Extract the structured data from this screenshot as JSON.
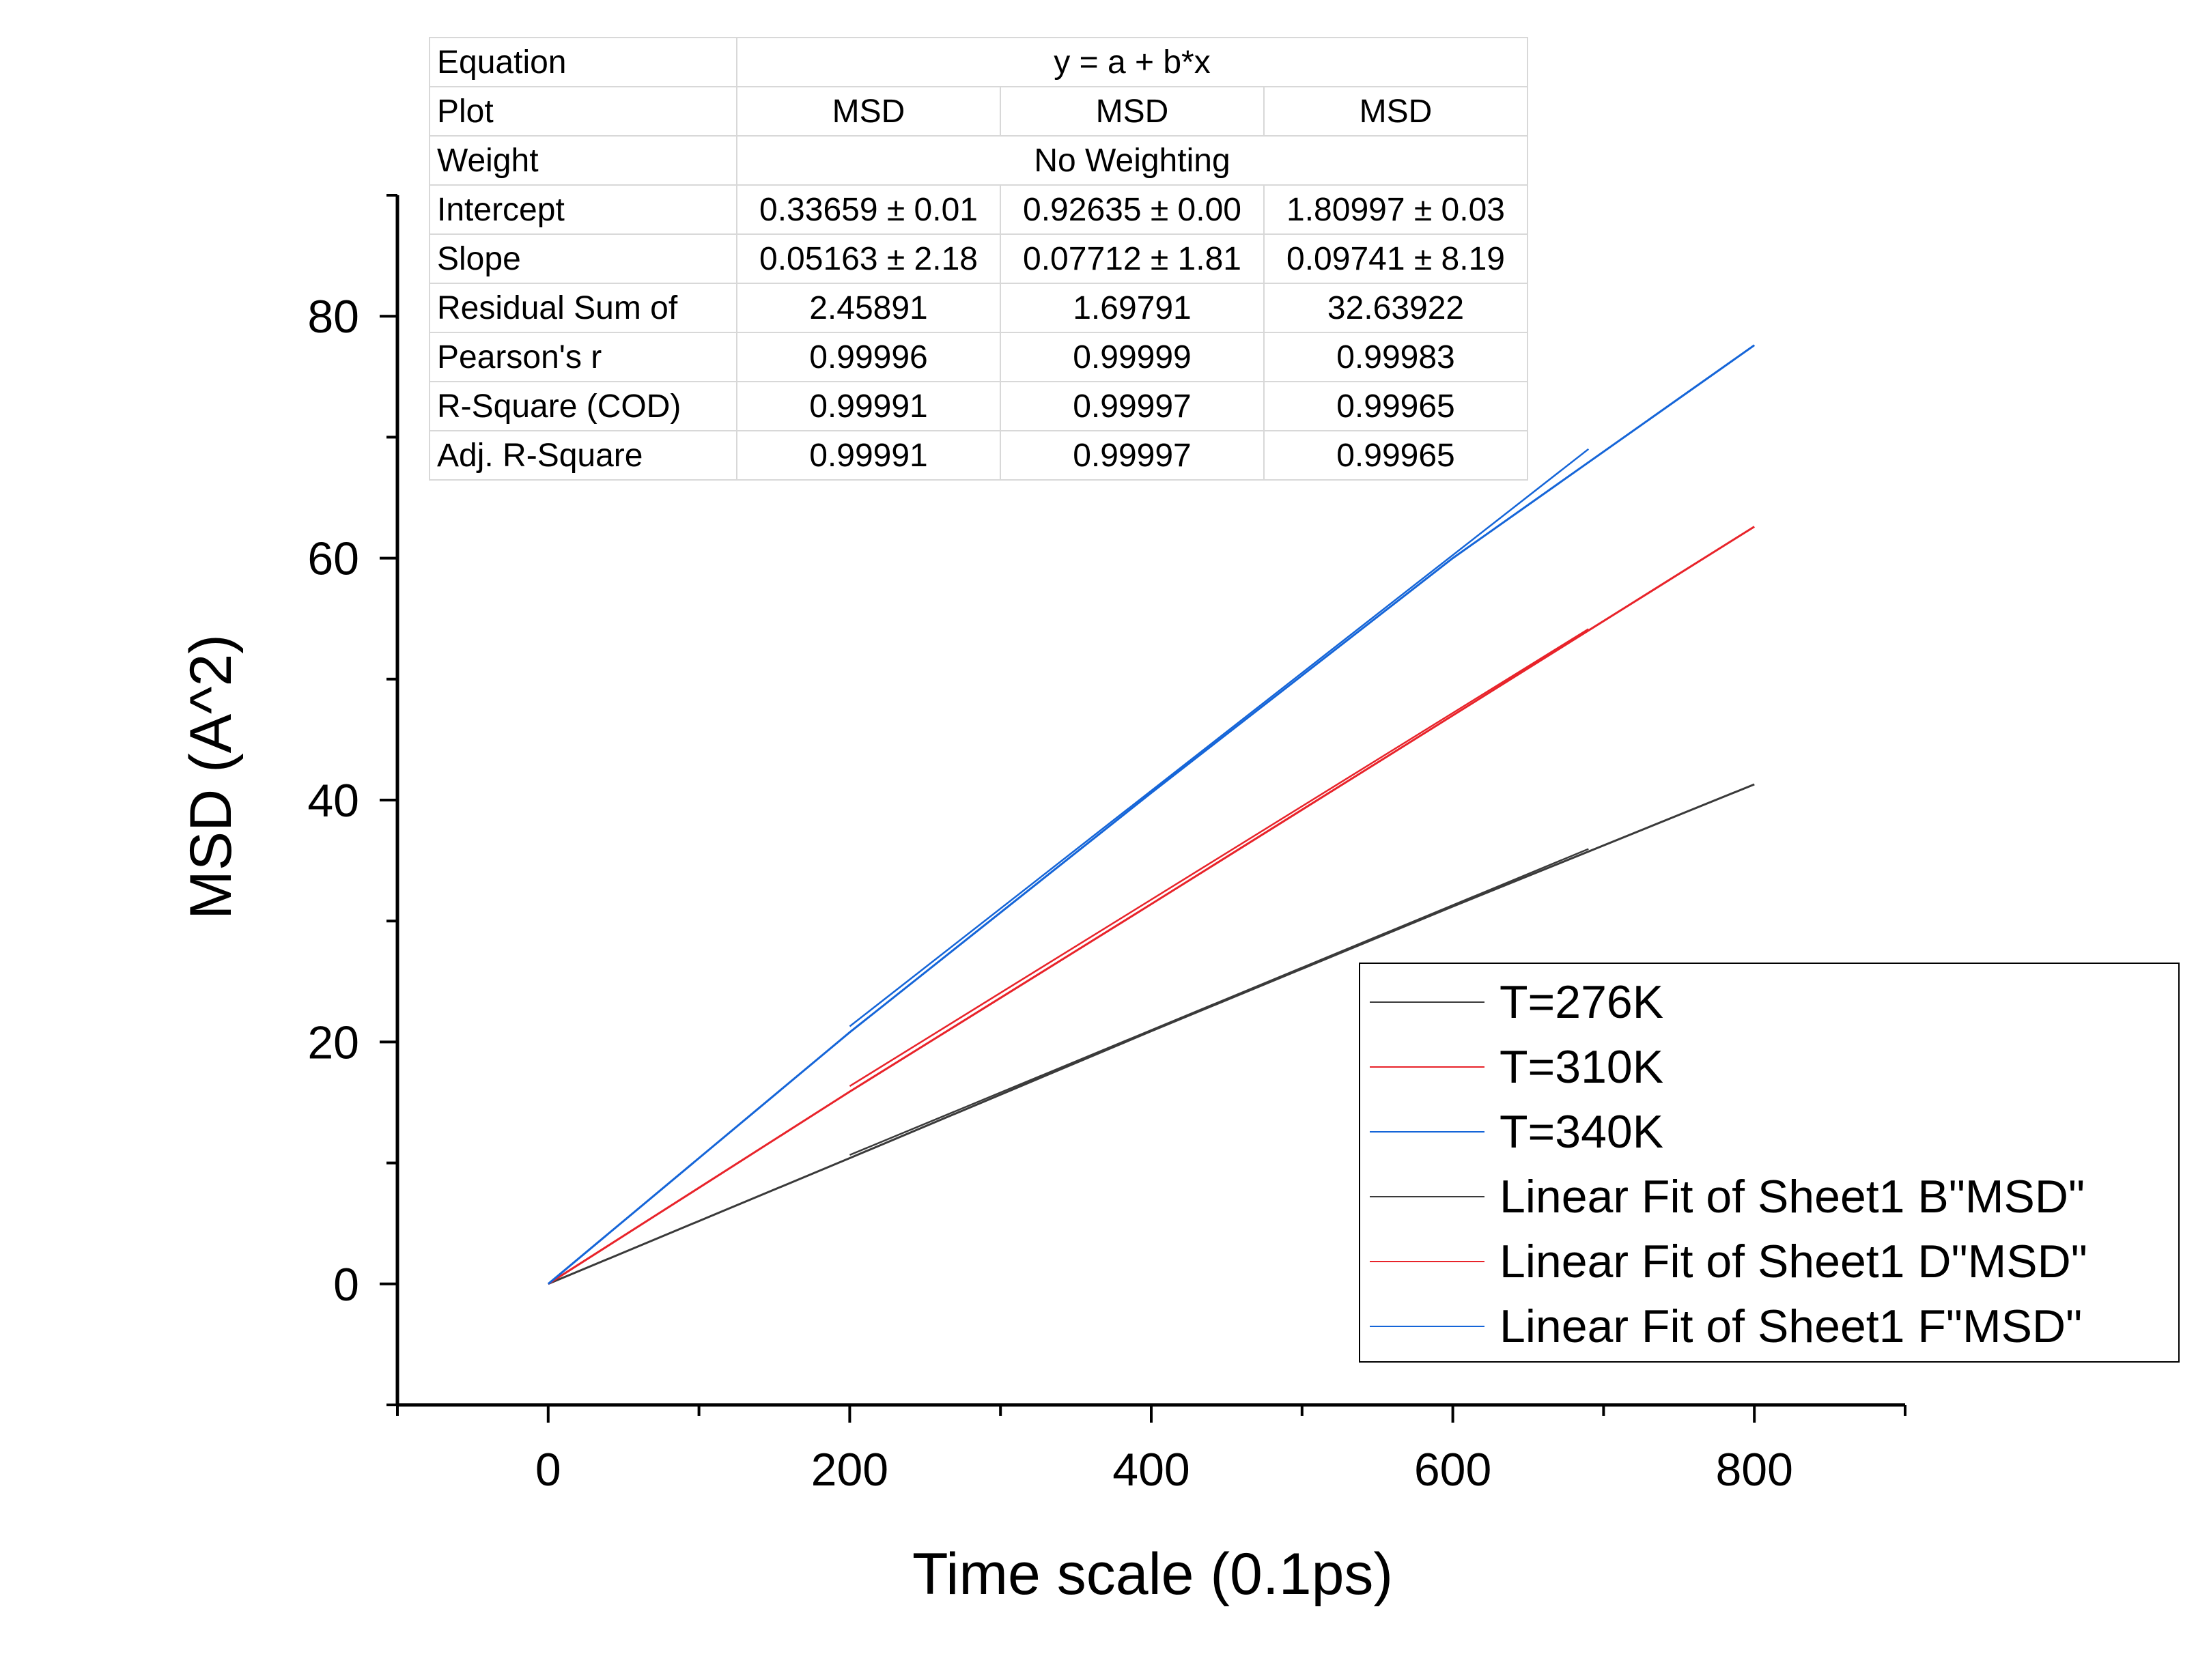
{
  "chart_data": {
    "type": "line",
    "xlabel": "Time scale (0.1ps)",
    "ylabel": "MSD (A^2)",
    "xlim": [
      -100,
      900
    ],
    "ylim": [
      -10,
      90
    ],
    "xticks": [
      "0",
      "200",
      "400",
      "600",
      "800"
    ],
    "yticks": [
      "0",
      "20",
      "40",
      "60",
      "80"
    ],
    "grid": false,
    "legend_position": "bottom-right",
    "series": [
      {
        "name": "T=276K",
        "color": "#3a3a3a",
        "x": [
          0,
          200,
          400,
          600,
          800
        ],
        "y": [
          0,
          10.4,
          20.9,
          31.2,
          41.3
        ]
      },
      {
        "name": "T=310K",
        "color": "#e8232a",
        "x": [
          0,
          200,
          400,
          600,
          800
        ],
        "y": [
          0,
          15.9,
          31.4,
          47.0,
          62.6
        ]
      },
      {
        "name": "T=340K",
        "color": "#1565d8",
        "x": [
          0,
          200,
          400,
          600,
          800
        ],
        "y": [
          0,
          20.8,
          40.6,
          60.0,
          77.6
        ]
      },
      {
        "name": "Linear Fit of Sheet1 B\"MSD\"",
        "color": "#3a3a3a",
        "x": [
          200,
          690
        ],
        "y": [
          10.66,
          35.96
        ]
      },
      {
        "name": "Linear Fit of Sheet1 D\"MSD\"",
        "color": "#e8232a",
        "x": [
          200,
          690
        ],
        "y": [
          16.35,
          54.14
        ]
      },
      {
        "name": "Linear Fit of Sheet1 F\"MSD\"",
        "color": "#1565d8",
        "x": [
          200,
          690
        ],
        "y": [
          21.29,
          69.02
        ]
      }
    ]
  },
  "fit_table": {
    "rows": [
      {
        "label": "Equation",
        "span": true,
        "value": "y = a + b*x"
      },
      {
        "label": "Plot",
        "values": [
          "MSD",
          "MSD",
          "MSD"
        ]
      },
      {
        "label": "Weight",
        "span": true,
        "value": "No Weighting"
      },
      {
        "label": "Intercept",
        "values": [
          "0.33659 ± 0.01",
          "0.92635 ± 0.00",
          "1.80997 ± 0.03"
        ]
      },
      {
        "label": "Slope",
        "values": [
          "0.05163 ± 2.18",
          "0.07712 ± 1.81",
          "0.09741 ± 8.19"
        ]
      },
      {
        "label": "Residual Sum of",
        "values": [
          "2.45891",
          "1.69791",
          "32.63922"
        ]
      },
      {
        "label": "Pearson's r",
        "values": [
          "0.99996",
          "0.99999",
          "0.99983"
        ]
      },
      {
        "label": "R-Square (COD)",
        "values": [
          "0.99991",
          "0.99997",
          "0.99965"
        ]
      },
      {
        "label": "Adj. R-Square",
        "values": [
          "0.99991",
          "0.99997",
          "0.99965"
        ]
      }
    ]
  }
}
